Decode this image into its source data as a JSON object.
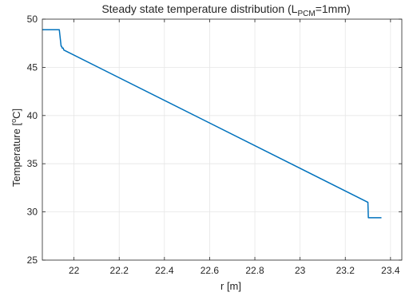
{
  "chart_data": {
    "type": "line",
    "title": {
      "prefix": "Steady state temperature distribution (L",
      "subscript": "PCM",
      "suffix": "=1mm)"
    },
    "xlabel": "r [m]",
    "ylabel": {
      "prefix": "Temperature [",
      "superscript": "o",
      "suffix": "C]"
    },
    "xlim": [
      21.86,
      23.45
    ],
    "ylim": [
      25,
      50
    ],
    "x_ticks": [
      22,
      22.2,
      22.4,
      22.6,
      22.8,
      23,
      23.2,
      23.4
    ],
    "x_tick_labels": [
      "22",
      "22.2",
      "22.4",
      "22.6",
      "22.8",
      "23",
      "23.2",
      "23.4"
    ],
    "y_ticks": [
      25,
      30,
      35,
      40,
      45,
      50
    ],
    "y_tick_labels": [
      "25",
      "30",
      "35",
      "40",
      "45",
      "50"
    ],
    "grid": true,
    "series": [
      {
        "color": "#0072BD",
        "x": [
          21.86,
          21.935,
          21.943,
          21.945,
          21.948,
          21.952,
          21.955,
          23.3,
          23.302,
          23.305,
          23.36
        ],
        "y": [
          48.9,
          48.9,
          47.2,
          47.2,
          47.0,
          47.0,
          46.8,
          31.0,
          29.4,
          29.4,
          29.4
        ]
      }
    ]
  }
}
